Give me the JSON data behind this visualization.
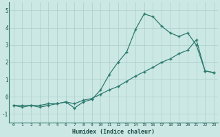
{
  "xlabel": "Humidex (Indice chaleur)",
  "x": [
    0,
    1,
    2,
    3,
    4,
    5,
    6,
    7,
    8,
    9,
    10,
    11,
    12,
    13,
    14,
    15,
    16,
    17,
    18,
    19,
    20,
    21,
    22,
    23
  ],
  "line1": [
    -0.5,
    -0.6,
    -0.5,
    -0.6,
    -0.5,
    -0.4,
    -0.3,
    -0.65,
    -0.3,
    -0.15,
    0.4,
    1.3,
    2.0,
    2.6,
    3.9,
    4.8,
    4.65,
    4.1,
    3.7,
    3.5,
    3.7,
    3.0,
    1.5,
    1.4
  ],
  "line2": [
    -0.5,
    -0.5,
    -0.5,
    -0.5,
    -0.4,
    -0.4,
    -0.3,
    -0.4,
    -0.2,
    -0.1,
    0.15,
    0.4,
    0.6,
    0.9,
    1.2,
    1.45,
    1.7,
    2.0,
    2.2,
    2.5,
    2.7,
    3.3,
    1.5,
    1.4
  ],
  "line_color": "#2d7a6e",
  "bg_color": "#cce8e4",
  "grid_color": "#aacfcb",
  "ylim": [
    -1.5,
    5.5
  ],
  "xlim": [
    -0.5,
    23.5
  ],
  "yticks": [
    -1,
    0,
    1,
    2,
    3,
    4,
    5
  ],
  "xticks": [
    0,
    1,
    2,
    3,
    4,
    5,
    6,
    7,
    8,
    9,
    10,
    11,
    12,
    13,
    14,
    15,
    16,
    17,
    18,
    19,
    20,
    21,
    22,
    23
  ]
}
